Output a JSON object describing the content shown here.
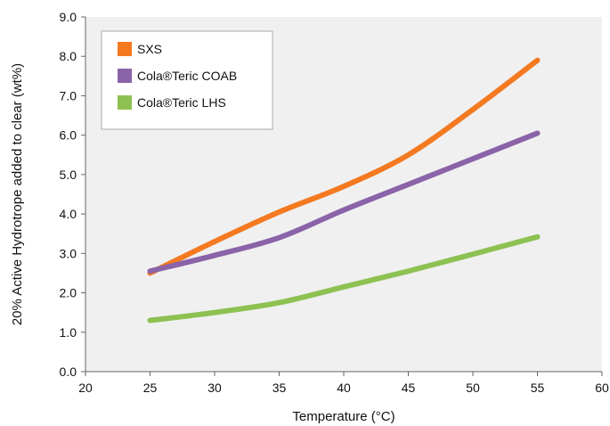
{
  "chart_data": {
    "type": "line",
    "xlabel": "Temperature (°C)",
    "ylabel": "20% Active Hydrotrope added to clear (wt%)",
    "xlim": [
      20,
      60
    ],
    "ylim": [
      0,
      9
    ],
    "x_ticks": [
      "20",
      "25",
      "30",
      "35",
      "40",
      "45",
      "50",
      "55",
      "60"
    ],
    "y_ticks": [
      "0.0",
      "1.0",
      "2.0",
      "3.0",
      "4.0",
      "5.0",
      "6.0",
      "7.0",
      "8.0",
      "9.0"
    ],
    "grid": false,
    "legend_position": "top-left",
    "background": "#f0f0f0",
    "series": [
      {
        "name": "SXS",
        "color": "#f47920",
        "x": [
          25,
          30,
          35,
          40,
          45,
          50,
          55
        ],
        "y": [
          2.5,
          3.3,
          4.05,
          4.7,
          5.5,
          6.65,
          7.9
        ]
      },
      {
        "name": "Cola®Teric COAB",
        "color": "#8a63a8",
        "x": [
          25,
          30,
          35,
          40,
          45,
          50,
          55
        ],
        "y": [
          2.55,
          2.95,
          3.4,
          4.1,
          4.75,
          5.4,
          6.05
        ]
      },
      {
        "name": "Cola®Teric LHS",
        "color": "#8dc152",
        "x": [
          25,
          30,
          35,
          40,
          45,
          50,
          55
        ],
        "y": [
          1.3,
          1.5,
          1.75,
          2.15,
          2.55,
          2.98,
          3.42
        ]
      }
    ]
  }
}
